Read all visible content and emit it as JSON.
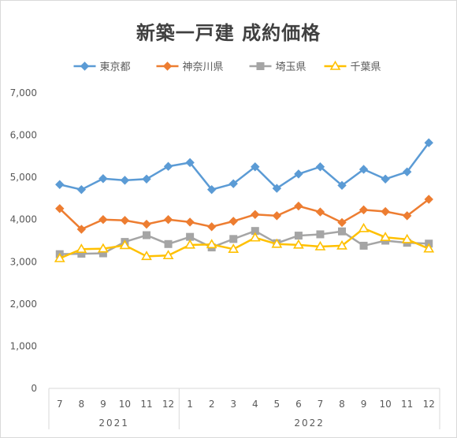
{
  "chart_data": {
    "type": "line",
    "title": "新築一戸建 成約価格",
    "xlabel": "",
    "ylabel": "",
    "categories": [
      "7",
      "8",
      "9",
      "10",
      "11",
      "12",
      "1",
      "2",
      "3",
      "4",
      "5",
      "6",
      "7",
      "8",
      "9",
      "10",
      "11",
      "12"
    ],
    "year_groups": [
      {
        "label": "2021",
        "start": 0,
        "end": 5
      },
      {
        "label": "2022",
        "start": 6,
        "end": 17
      }
    ],
    "ylim": [
      0,
      7000
    ],
    "yticks": [
      0,
      1000,
      2000,
      3000,
      4000,
      5000,
      6000,
      7000
    ],
    "ytick_labels": [
      "0",
      "1,000",
      "2,000",
      "3,000",
      "4,000",
      "5,000",
      "6,000",
      "7,000"
    ],
    "grid": false,
    "legend_position": "top",
    "series": [
      {
        "name": "東京都",
        "color": "#5b9bd5",
        "marker": "diamond",
        "values": [
          4830,
          4710,
          4970,
          4930,
          4960,
          5260,
          5350,
          4710,
          4850,
          5250,
          4740,
          5080,
          5250,
          4810,
          5190,
          4960,
          5130,
          5820
        ]
      },
      {
        "name": "神奈川県",
        "color": "#ed7d31",
        "marker": "diamond",
        "values": [
          4260,
          3770,
          4000,
          3980,
          3890,
          4000,
          3940,
          3830,
          3960,
          4120,
          4090,
          4320,
          4180,
          3930,
          4230,
          4190,
          4090,
          4480
        ]
      },
      {
        "name": "埼玉県",
        "color": "#a5a5a5",
        "marker": "square",
        "values": [
          3180,
          3190,
          3200,
          3470,
          3630,
          3420,
          3590,
          3340,
          3540,
          3730,
          3440,
          3620,
          3650,
          3720,
          3380,
          3500,
          3450,
          3430
        ]
      },
      {
        "name": "千葉県",
        "color": "#ffc000",
        "marker": "triangle",
        "values": [
          3080,
          3300,
          3310,
          3390,
          3130,
          3150,
          3400,
          3410,
          3300,
          3570,
          3420,
          3400,
          3360,
          3380,
          3790,
          3580,
          3530,
          3310
        ]
      }
    ]
  }
}
